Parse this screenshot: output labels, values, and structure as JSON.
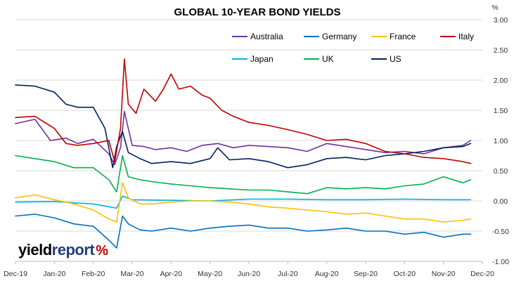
{
  "chart_data": {
    "type": "line",
    "title": "GLOBAL 10-YEAR BOND YIELDS",
    "unit_label": "%",
    "ylim": [
      -1.0,
      3.0
    ],
    "yticks": [
      "3.00",
      "2.50",
      "2.00",
      "1.50",
      "1.00",
      "0.50",
      "0.00",
      "-0.50",
      "-1.00"
    ],
    "x_tick_labels": [
      "Dec-19",
      "Jan-20",
      "Feb-20",
      "Mar-20",
      "Apr-20",
      "May-20",
      "Jun-20",
      "Jul-20",
      "Aug-20",
      "Sep-20",
      "Oct-20",
      "Nov-20",
      "Dec-20"
    ],
    "x_unit": "month index (0 = Dec-19)",
    "grid": "horizontal",
    "legend": "top-right",
    "series": [
      {
        "name": "Australia",
        "color": "#7030a0",
        "x": [
          0,
          0.5,
          0.9,
          1.3,
          1.6,
          2.0,
          2.4,
          2.55,
          2.7,
          2.8,
          3.0,
          3.3,
          3.6,
          4.0,
          4.4,
          4.8,
          5.2,
          5.6,
          6.0,
          6.5,
          7.0,
          7.5,
          8.0,
          8.5,
          9.0,
          9.5,
          10.0,
          10.5,
          11.0,
          11.5,
          11.7
        ],
        "y": [
          1.28,
          1.35,
          1.0,
          1.04,
          0.95,
          1.02,
          0.78,
          0.6,
          0.88,
          1.48,
          0.92,
          0.9,
          0.85,
          0.88,
          0.82,
          0.92,
          0.95,
          0.88,
          0.92,
          0.9,
          0.88,
          0.82,
          0.95,
          0.9,
          0.85,
          0.8,
          0.82,
          0.78,
          0.88,
          0.92,
          1.0
        ]
      },
      {
        "name": "Germany",
        "color": "#0070c0",
        "x": [
          0,
          0.5,
          1.0,
          1.5,
          2.0,
          2.4,
          2.6,
          2.75,
          2.9,
          3.2,
          3.5,
          4.0,
          4.5,
          5.0,
          5.5,
          6.0,
          6.5,
          7.0,
          7.5,
          8.0,
          8.5,
          9.0,
          9.5,
          10.0,
          10.5,
          11.0,
          11.5,
          11.7
        ],
        "y": [
          -0.25,
          -0.22,
          -0.28,
          -0.38,
          -0.42,
          -0.65,
          -0.78,
          -0.25,
          -0.38,
          -0.48,
          -0.5,
          -0.45,
          -0.5,
          -0.45,
          -0.42,
          -0.4,
          -0.45,
          -0.45,
          -0.5,
          -0.48,
          -0.45,
          -0.5,
          -0.5,
          -0.55,
          -0.52,
          -0.6,
          -0.55,
          -0.55
        ]
      },
      {
        "name": "France",
        "color": "#ffc000",
        "x": [
          0,
          0.5,
          1.0,
          1.5,
          2.0,
          2.4,
          2.6,
          2.75,
          2.9,
          3.2,
          3.5,
          4.0,
          4.5,
          5.0,
          5.5,
          6.0,
          6.5,
          7.0,
          7.5,
          8.0,
          8.5,
          9.0,
          9.5,
          10.0,
          10.5,
          11.0,
          11.5,
          11.7
        ],
        "y": [
          0.05,
          0.1,
          0.02,
          -0.05,
          -0.15,
          -0.3,
          -0.35,
          0.3,
          0.05,
          -0.05,
          -0.05,
          -0.02,
          0.0,
          0.0,
          -0.02,
          -0.05,
          -0.1,
          -0.12,
          -0.15,
          -0.18,
          -0.22,
          -0.2,
          -0.25,
          -0.3,
          -0.3,
          -0.35,
          -0.32,
          -0.3
        ]
      },
      {
        "name": "Italy",
        "color": "#c00000",
        "x": [
          0,
          0.5,
          1.0,
          1.3,
          1.6,
          2.0,
          2.4,
          2.55,
          2.7,
          2.8,
          2.9,
          3.1,
          3.3,
          3.6,
          3.8,
          4.0,
          4.2,
          4.5,
          4.8,
          5.0,
          5.3,
          5.6,
          6.0,
          6.5,
          7.0,
          7.5,
          8.0,
          8.5,
          9.0,
          9.5,
          10.0,
          10.5,
          11.0,
          11.5,
          11.7
        ],
        "y": [
          1.38,
          1.4,
          1.2,
          0.95,
          0.92,
          0.95,
          1.0,
          0.65,
          1.2,
          2.35,
          1.6,
          1.45,
          1.85,
          1.65,
          1.85,
          2.1,
          1.85,
          1.9,
          1.75,
          1.7,
          1.5,
          1.4,
          1.3,
          1.25,
          1.18,
          1.1,
          1.0,
          1.02,
          0.95,
          0.82,
          0.78,
          0.72,
          0.7,
          0.65,
          0.62
        ]
      },
      {
        "name": "Japan",
        "color": "#00b0f0",
        "x": [
          0,
          1.0,
          2.0,
          2.6,
          2.75,
          3.0,
          4.0,
          5.0,
          6.0,
          7.0,
          8.0,
          9.0,
          10.0,
          11.0,
          11.7
        ],
        "y": [
          -0.02,
          -0.01,
          -0.05,
          -0.12,
          0.08,
          0.02,
          0.01,
          0.0,
          0.03,
          0.03,
          0.02,
          0.02,
          0.03,
          0.02,
          0.02
        ]
      },
      {
        "name": "UK",
        "color": "#00b050",
        "x": [
          0,
          0.5,
          1.0,
          1.5,
          2.0,
          2.4,
          2.6,
          2.75,
          2.9,
          3.2,
          3.5,
          4.0,
          4.5,
          5.0,
          5.5,
          6.0,
          6.5,
          7.0,
          7.5,
          8.0,
          8.5,
          9.0,
          9.5,
          10.0,
          10.5,
          11.0,
          11.5,
          11.7
        ],
        "y": [
          0.75,
          0.7,
          0.65,
          0.55,
          0.55,
          0.35,
          0.15,
          0.75,
          0.4,
          0.35,
          0.32,
          0.28,
          0.25,
          0.22,
          0.2,
          0.18,
          0.18,
          0.15,
          0.12,
          0.22,
          0.2,
          0.22,
          0.2,
          0.25,
          0.28,
          0.4,
          0.3,
          0.35
        ]
      },
      {
        "name": "US",
        "color": "#002060",
        "x": [
          0,
          0.5,
          1.0,
          1.3,
          1.6,
          2.0,
          2.3,
          2.5,
          2.6,
          2.75,
          2.9,
          3.2,
          3.5,
          4.0,
          4.5,
          5.0,
          5.2,
          5.5,
          6.0,
          6.5,
          7.0,
          7.5,
          8.0,
          8.5,
          9.0,
          9.5,
          10.0,
          10.5,
          11.0,
          11.5,
          11.7
        ],
        "y": [
          1.92,
          1.9,
          1.8,
          1.6,
          1.55,
          1.55,
          1.2,
          0.55,
          0.9,
          1.15,
          0.8,
          0.7,
          0.62,
          0.65,
          0.62,
          0.7,
          0.88,
          0.68,
          0.7,
          0.65,
          0.55,
          0.6,
          0.7,
          0.72,
          0.68,
          0.75,
          0.78,
          0.82,
          0.88,
          0.9,
          0.95
        ]
      }
    ]
  },
  "logo": {
    "part1": "yield",
    "part2": "report",
    "part3": "%"
  }
}
